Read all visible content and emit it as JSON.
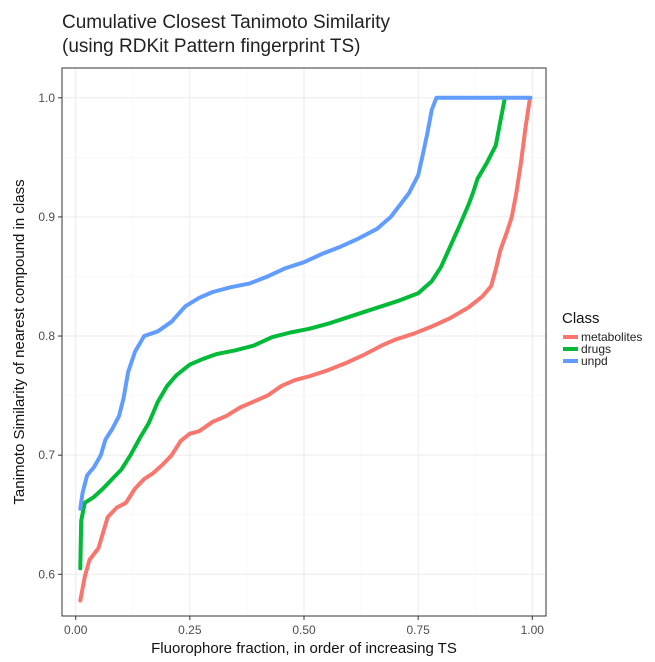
{
  "chart_data": {
    "type": "line",
    "title_lines": [
      "Cumulative Closest Tanimoto Similarity",
      "(using RDKit Pattern fingerprint TS)"
    ],
    "xlabel": "Fluorophore fraction, in order of increasing TS",
    "ylabel": "Tanimoto Similarity of nearest compound in class",
    "xlim": [
      -0.03,
      1.03
    ],
    "ylim": [
      0.565,
      1.025
    ],
    "xticks": [
      0.0,
      0.25,
      0.5,
      0.75,
      1.0
    ],
    "xtick_labels": [
      "0.00",
      "0.25",
      "0.50",
      "0.75",
      "1.00"
    ],
    "yticks": [
      0.6,
      0.7,
      0.8,
      0.9,
      1.0
    ],
    "ytick_labels": [
      "0.6",
      "0.7",
      "0.8",
      "0.9",
      "1.0"
    ],
    "grid": true,
    "legend": {
      "title": "Class",
      "position": "right"
    },
    "series": [
      {
        "name": "metabolites",
        "color": "#F8766D",
        "points": [
          [
            0.01,
            0.578
          ],
          [
            0.02,
            0.598
          ],
          [
            0.03,
            0.612
          ],
          [
            0.05,
            0.622
          ],
          [
            0.06,
            0.635
          ],
          [
            0.07,
            0.648
          ],
          [
            0.09,
            0.656
          ],
          [
            0.11,
            0.66
          ],
          [
            0.13,
            0.672
          ],
          [
            0.15,
            0.68
          ],
          [
            0.17,
            0.685
          ],
          [
            0.19,
            0.692
          ],
          [
            0.21,
            0.7
          ],
          [
            0.23,
            0.712
          ],
          [
            0.25,
            0.718
          ],
          [
            0.27,
            0.72
          ],
          [
            0.3,
            0.728
          ],
          [
            0.33,
            0.733
          ],
          [
            0.36,
            0.74
          ],
          [
            0.39,
            0.745
          ],
          [
            0.42,
            0.75
          ],
          [
            0.45,
            0.758
          ],
          [
            0.48,
            0.763
          ],
          [
            0.51,
            0.766
          ],
          [
            0.55,
            0.771
          ],
          [
            0.59,
            0.777
          ],
          [
            0.63,
            0.784
          ],
          [
            0.67,
            0.792
          ],
          [
            0.7,
            0.797
          ],
          [
            0.74,
            0.802
          ],
          [
            0.78,
            0.808
          ],
          [
            0.82,
            0.815
          ],
          [
            0.86,
            0.824
          ],
          [
            0.89,
            0.833
          ],
          [
            0.91,
            0.842
          ],
          [
            0.92,
            0.856
          ],
          [
            0.93,
            0.872
          ],
          [
            0.945,
            0.888
          ],
          [
            0.955,
            0.9
          ],
          [
            0.965,
            0.92
          ],
          [
            0.975,
            0.945
          ],
          [
            0.985,
            0.975
          ],
          [
            0.995,
            1.0
          ]
        ]
      },
      {
        "name": "drugs",
        "color": "#00BA38",
        "points": [
          [
            0.01,
            0.605
          ],
          [
            0.012,
            0.645
          ],
          [
            0.02,
            0.66
          ],
          [
            0.04,
            0.665
          ],
          [
            0.06,
            0.672
          ],
          [
            0.08,
            0.68
          ],
          [
            0.1,
            0.688
          ],
          [
            0.12,
            0.7
          ],
          [
            0.14,
            0.714
          ],
          [
            0.16,
            0.727
          ],
          [
            0.18,
            0.745
          ],
          [
            0.2,
            0.758
          ],
          [
            0.22,
            0.767
          ],
          [
            0.25,
            0.776
          ],
          [
            0.28,
            0.781
          ],
          [
            0.31,
            0.785
          ],
          [
            0.35,
            0.788
          ],
          [
            0.39,
            0.792
          ],
          [
            0.43,
            0.799
          ],
          [
            0.47,
            0.803
          ],
          [
            0.51,
            0.806
          ],
          [
            0.55,
            0.81
          ],
          [
            0.59,
            0.815
          ],
          [
            0.63,
            0.82
          ],
          [
            0.67,
            0.825
          ],
          [
            0.71,
            0.83
          ],
          [
            0.75,
            0.836
          ],
          [
            0.78,
            0.846
          ],
          [
            0.8,
            0.858
          ],
          [
            0.82,
            0.875
          ],
          [
            0.84,
            0.892
          ],
          [
            0.86,
            0.91
          ],
          [
            0.87,
            0.92
          ],
          [
            0.88,
            0.932
          ],
          [
            0.9,
            0.945
          ],
          [
            0.92,
            0.96
          ],
          [
            0.93,
            0.98
          ],
          [
            0.94,
            1.0
          ]
        ]
      },
      {
        "name": "unpd",
        "color": "#619CFF",
        "points": [
          [
            0.01,
            0.655
          ],
          [
            0.015,
            0.668
          ],
          [
            0.025,
            0.683
          ],
          [
            0.04,
            0.69
          ],
          [
            0.055,
            0.7
          ],
          [
            0.065,
            0.713
          ],
          [
            0.08,
            0.722
          ],
          [
            0.095,
            0.733
          ],
          [
            0.105,
            0.748
          ],
          [
            0.115,
            0.77
          ],
          [
            0.13,
            0.787
          ],
          [
            0.15,
            0.8
          ],
          [
            0.18,
            0.804
          ],
          [
            0.21,
            0.812
          ],
          [
            0.24,
            0.825
          ],
          [
            0.27,
            0.832
          ],
          [
            0.3,
            0.837
          ],
          [
            0.34,
            0.841
          ],
          [
            0.38,
            0.844
          ],
          [
            0.42,
            0.85
          ],
          [
            0.46,
            0.857
          ],
          [
            0.5,
            0.862
          ],
          [
            0.54,
            0.869
          ],
          [
            0.58,
            0.875
          ],
          [
            0.62,
            0.882
          ],
          [
            0.66,
            0.89
          ],
          [
            0.69,
            0.9
          ],
          [
            0.71,
            0.91
          ],
          [
            0.73,
            0.92
          ],
          [
            0.75,
            0.935
          ],
          [
            0.76,
            0.952
          ],
          [
            0.77,
            0.97
          ],
          [
            0.78,
            0.99
          ],
          [
            0.79,
            1.0
          ],
          [
            0.996,
            1.0
          ]
        ]
      }
    ]
  }
}
